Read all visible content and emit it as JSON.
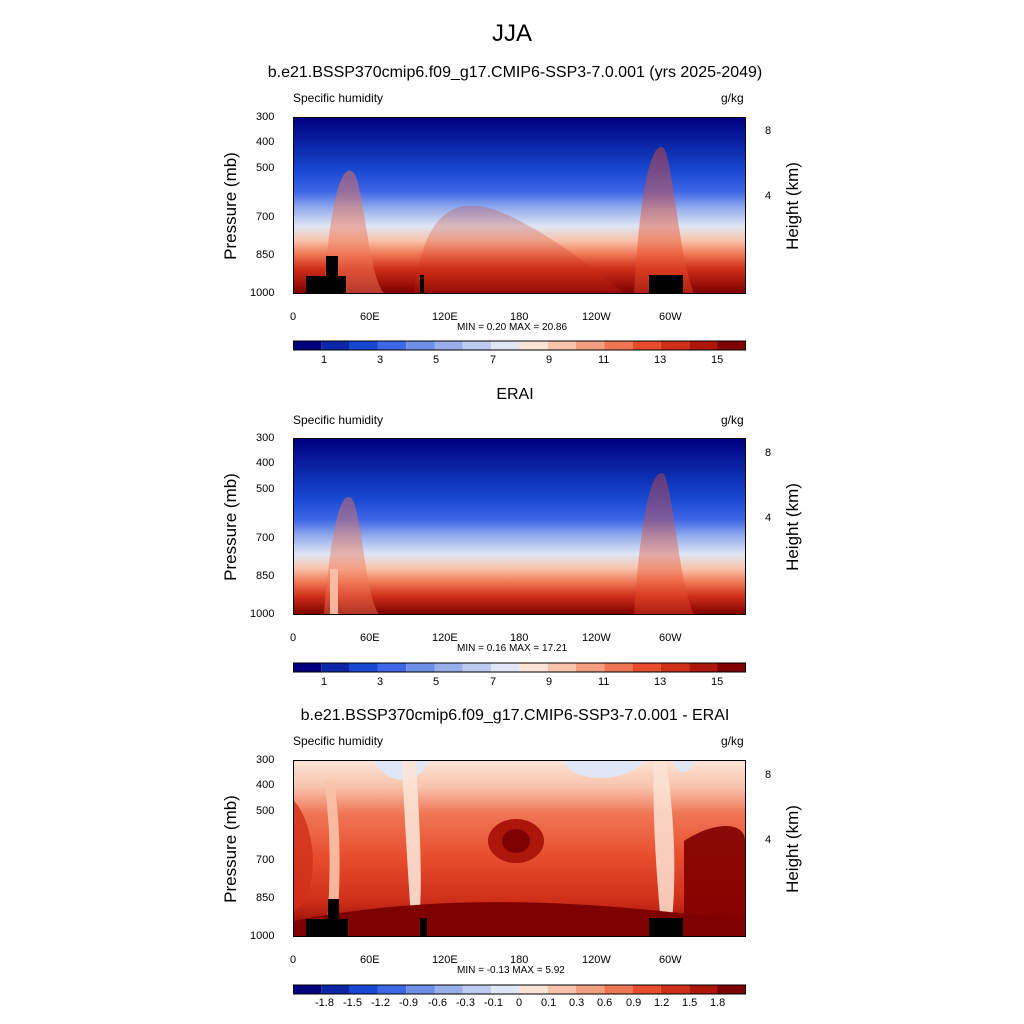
{
  "main_title": "JJA",
  "chart_data": [
    {
      "type": "heatmap",
      "title": "b.e21.BSSP370cmip6.f09_g17.CMIP6-SSP3-7.0.001 (yrs 2025-2049)",
      "left_string": "Specific humidity",
      "right_string": "g/kg",
      "ylabel": "Pressure (mb)",
      "ylabel_right": "Height (km)",
      "y_ticks": [
        "300",
        "400",
        "500",
        "700",
        "850",
        "1000"
      ],
      "y_right_ticks": [
        "8",
        "4"
      ],
      "x_ticks": [
        "0",
        "60E",
        "120E",
        "180",
        "120W",
        "60W"
      ],
      "min_max": "MIN =   0.20  MAX =  20.86",
      "colorbar_labels": [
        "1",
        "3",
        "5",
        "7",
        "9",
        "11",
        "13",
        "15"
      ]
    },
    {
      "type": "heatmap",
      "title": "ERAI",
      "left_string": "Specific humidity",
      "right_string": "g/kg",
      "ylabel": "Pressure (mb)",
      "ylabel_right": "Height (km)",
      "y_ticks": [
        "300",
        "400",
        "500",
        "700",
        "850",
        "1000"
      ],
      "y_right_ticks": [
        "8",
        "4"
      ],
      "x_ticks": [
        "0",
        "60E",
        "120E",
        "180",
        "120W",
        "60W"
      ],
      "min_max": "MIN =   0.16  MAX =  17.21",
      "colorbar_labels": [
        "1",
        "3",
        "5",
        "7",
        "9",
        "11",
        "13",
        "15"
      ]
    },
    {
      "type": "heatmap",
      "title": "b.e21.BSSP370cmip6.f09_g17.CMIP6-SSP3-7.0.001 - ERAI",
      "left_string": "Specific humidity",
      "right_string": "g/kg",
      "ylabel": "Pressure (mb)",
      "ylabel_right": "Height (km)",
      "y_ticks": [
        "300",
        "400",
        "500",
        "700",
        "850",
        "1000"
      ],
      "y_right_ticks": [
        "8",
        "4"
      ],
      "x_ticks": [
        "0",
        "60E",
        "120E",
        "180",
        "120W",
        "60W"
      ],
      "min_max": "MIN =  -0.13  MAX =   5.92",
      "colorbar_labels": [
        "-1.8",
        "-1.5",
        "-1.2",
        "-0.9",
        "-0.6",
        "-0.3",
        "-0.1",
        "0",
        "0.1",
        "0.3",
        "0.6",
        "0.9",
        "1.2",
        "1.5",
        "1.8"
      ]
    }
  ],
  "colormaps": {
    "absolute": [
      "#00007f",
      "#0b27a8",
      "#1848d2",
      "#3d67e6",
      "#6e8fe8",
      "#98afec",
      "#bccbef",
      "#dfe6f5",
      "#fbe3d5",
      "#f8c3ab",
      "#f49e80",
      "#ef7655",
      "#e74d2d",
      "#cf2f19",
      "#ad160b",
      "#7f0000"
    ],
    "difference": [
      "#00007f",
      "#0b27a8",
      "#1848d2",
      "#3d67e6",
      "#6e8fe8",
      "#98afec",
      "#bccbef",
      "#dfe6f5",
      "#fbe3d5",
      "#f8c3ab",
      "#f49e80",
      "#ef7655",
      "#e74d2d",
      "#cf2f19",
      "#ad160b",
      "#7f0000"
    ]
  }
}
